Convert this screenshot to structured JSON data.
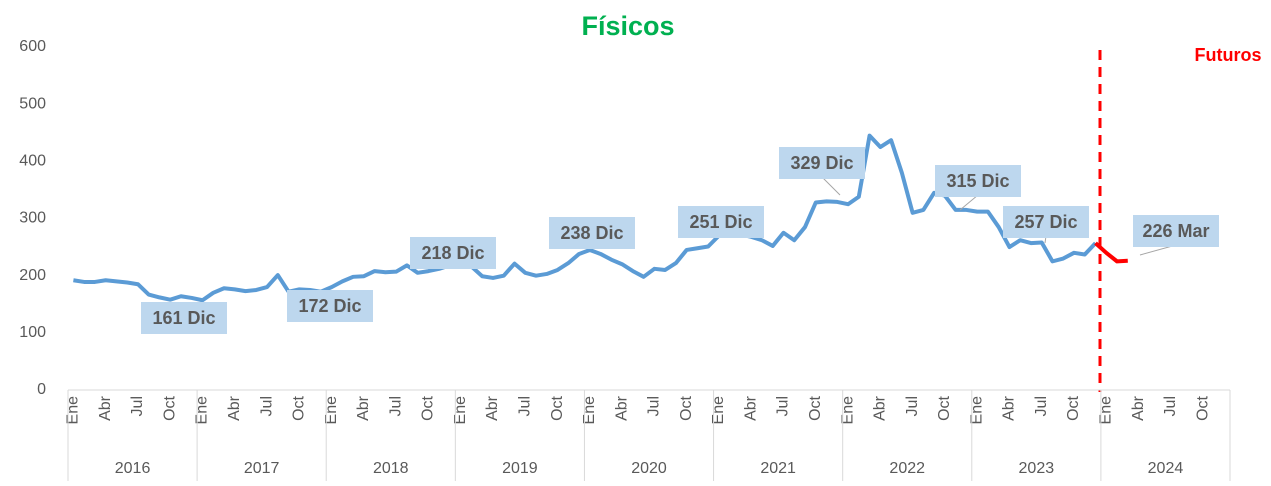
{
  "chart_data": {
    "type": "line",
    "title": "Físicos",
    "annotation_right": "Futuros",
    "categories": [
      "Ene",
      null,
      null,
      "Abr",
      null,
      null,
      "Jul",
      null,
      null,
      "Oct",
      null,
      null,
      "Ene",
      null,
      null,
      "Abr",
      null,
      null,
      "Jul",
      null,
      null,
      "Oct",
      null,
      null,
      "Ene",
      null,
      null,
      "Abr",
      null,
      null,
      "Jul",
      null,
      null,
      "Oct",
      null,
      null,
      "Ene",
      null,
      null,
      "Abr",
      null,
      null,
      "Jul",
      null,
      null,
      "Oct",
      null,
      null,
      "Ene",
      null,
      null,
      "Abr",
      null,
      null,
      "Jul",
      null,
      null,
      "Oct",
      null,
      null,
      "Ene",
      null,
      null,
      "Abr",
      null,
      null,
      "Jul",
      null,
      null,
      "Oct",
      null,
      null,
      "Ene",
      null,
      null,
      "Abr",
      null,
      null,
      "Jul",
      null,
      null,
      "Oct",
      null,
      null,
      "Ene",
      null,
      null,
      "Abr",
      null,
      null,
      "Jul",
      null,
      null,
      "Oct",
      null,
      null,
      "Ene",
      null,
      null,
      "Abr",
      null,
      null,
      "Jul",
      null,
      null,
      "Oct",
      null,
      null
    ],
    "years": [
      "2016",
      "2017",
      "2018",
      "2019",
      "2020",
      "2021",
      "2022",
      "2023",
      "2024"
    ],
    "series": [
      {
        "color": "#5b9bd5",
        "values": [
          192,
          189,
          189,
          192,
          190,
          188,
          185,
          167,
          162,
          158,
          164,
          161,
          157,
          170,
          178,
          176,
          173,
          175,
          180,
          201,
          172,
          176,
          175,
          172,
          180,
          190,
          198,
          199,
          208,
          206,
          207,
          218,
          205,
          208,
          212,
          218,
          220,
          216,
          199,
          196,
          200,
          221,
          205,
          200,
          203,
          210,
          222,
          238,
          245,
          238,
          228,
          220,
          208,
          198,
          212,
          210,
          222,
          245,
          248,
          251,
          270,
          275,
          272,
          268,
          262,
          252,
          275,
          262,
          285,
          328,
          330,
          329,
          325,
          338,
          445,
          425,
          437,
          380,
          310,
          315,
          345,
          340,
          315,
          315,
          312,
          312,
          285,
          250,
          262,
          257,
          258,
          225,
          230,
          240,
          237,
          257,
          null,
          null,
          null,
          null,
          null,
          null,
          null,
          null,
          null,
          null,
          null,
          null
        ]
      },
      {
        "color": "#ff0000",
        "values": [
          null,
          null,
          null,
          null,
          null,
          null,
          null,
          null,
          null,
          null,
          null,
          null,
          null,
          null,
          null,
          null,
          null,
          null,
          null,
          null,
          null,
          null,
          null,
          null,
          null,
          null,
          null,
          null,
          null,
          null,
          null,
          null,
          null,
          null,
          null,
          null,
          null,
          null,
          null,
          null,
          null,
          null,
          null,
          null,
          null,
          null,
          null,
          null,
          null,
          null,
          null,
          null,
          null,
          null,
          null,
          null,
          null,
          null,
          null,
          null,
          null,
          null,
          null,
          null,
          null,
          null,
          null,
          null,
          null,
          null,
          null,
          null,
          null,
          null,
          null,
          null,
          null,
          null,
          null,
          null,
          null,
          null,
          null,
          null,
          null,
          null,
          null,
          null,
          null,
          null,
          null,
          null,
          null,
          null,
          null,
          257,
          240,
          225,
          226,
          null,
          null,
          null,
          null,
          null,
          null,
          null,
          null,
          null
        ]
      }
    ],
    "annotations": [
      "161 Dic",
      "172 Dic",
      "218 Dic",
      "238 Dic",
      "251 Dic",
      "329 Dic",
      "315 Dic",
      "257 Dic",
      "226 Mar"
    ],
    "ylim": [
      0,
      600
    ],
    "yticks": [
      0,
      100,
      200,
      300,
      400,
      500,
      600
    ],
    "grid": false
  }
}
